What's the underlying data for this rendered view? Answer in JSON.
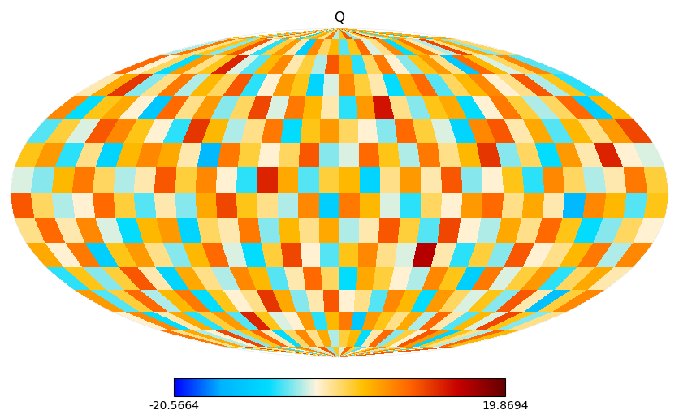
{
  "chart_data": {
    "type": "heatmap",
    "title": "Q",
    "tick_labels": false,
    "grid": false,
    "colorbar_range": [
      -20.5664,
      19.8694
    ],
    "colorbar_ticks": [
      -20.5664,
      19.8694
    ],
    "cells": [
      [
        3,
        -2,
        5,
        -7,
        1,
        8,
        -4,
        0,
        6,
        -3,
        -9,
        2,
        4,
        -1,
        7,
        -5,
        2,
        9,
        -6,
        -2,
        3,
        11,
        -4,
        1,
        -8,
        5,
        0,
        -3,
        6,
        -10,
        2,
        4
      ],
      [
        -5,
        7,
        -1,
        2,
        -6,
        4,
        9,
        -3,
        -8,
        1,
        5,
        -2,
        -11,
        6,
        0,
        3,
        -7,
        2,
        8,
        -4,
        -1,
        6,
        -9,
        3,
        7,
        -2,
        -5,
        10,
        -1,
        4,
        -6,
        0
      ],
      [
        8,
        -3,
        0,
        -9,
        5,
        -1,
        2,
        12,
        -4,
        -7,
        3,
        6,
        -2,
        1,
        -5,
        9,
        4,
        -8,
        0,
        7,
        -3,
        -6,
        2,
        5,
        -1,
        -12,
        8,
        3,
        -4,
        0,
        6,
        -7
      ],
      [
        -2,
        4,
        11,
        -6,
        -1,
        7,
        -5,
        3,
        0,
        9,
        -8,
        -3,
        5,
        2,
        -10,
        -4,
        6,
        1,
        -2,
        -9,
        4,
        8,
        -7,
        0,
        3,
        6,
        -3,
        -1,
        9,
        -5,
        2,
        -8
      ],
      [
        6,
        -9,
        2,
        4,
        -3,
        -12,
        8,
        -1,
        5,
        -6,
        0,
        10,
        -4,
        7,
        3,
        -2,
        -8,
        5,
        13,
        -1,
        -6,
        2,
        4,
        -9,
        -3,
        7,
        1,
        -5,
        0,
        8,
        -11,
        3
      ],
      [
        -7,
        1,
        -4,
        9,
        6,
        2,
        -3,
        -8,
        11,
        3,
        -5,
        -1,
        7,
        -9,
        2,
        5,
        0,
        -3,
        -6,
        8,
        1,
        -4,
        -10,
        6,
        9,
        -2,
        4,
        -7,
        3,
        -1,
        5,
        10
      ],
      [
        2,
        5,
        -8,
        -1,
        -10,
        3,
        6,
        4,
        -2,
        -14,
        7,
        1,
        -3,
        0,
        9,
        -6,
        -4,
        8,
        2,
        -5,
        7,
        -1,
        3,
        11,
        -6,
        0,
        -9,
        5,
        -2,
        12,
        -3,
        -4
      ],
      [
        -4,
        -6,
        3,
        7,
        0,
        -5,
        -2,
        9,
        1,
        6,
        -3,
        -8,
        12,
        4,
        -7,
        1,
        3,
        -10,
        -1,
        5,
        -2,
        9,
        -6,
        -3,
        2,
        -8,
        6,
        0,
        -5,
        -2,
        7,
        1
      ],
      [
        9,
        0,
        -5,
        -3,
        8,
        1,
        -7,
        -2,
        -6,
        4,
        10,
        2,
        -1,
        -5,
        6,
        -11,
        7,
        3,
        -4,
        -8,
        0,
        -3,
        5,
        8,
        -1,
        4,
        -2,
        -14,
        6,
        3,
        -7,
        2
      ],
      [
        -1,
        8,
        -2,
        6,
        -4,
        -9,
        3,
        5,
        -10,
        0,
        -2,
        7,
        -6,
        3,
        -1,
        4,
        -5,
        -2,
        9,
        1,
        -7,
        10,
        -3,
        -5,
        4,
        -1,
        8,
        2,
        -9,
        -6,
        0,
        -3
      ],
      [
        4,
        -3,
        7,
        -11,
        2,
        5,
        -1,
        -6,
        3,
        8,
        -4,
        -9,
        1,
        10,
        -3,
        -7,
        2,
        6,
        -1,
        -4,
        15,
        -2,
        -8,
        1,
        -6,
        9,
        -3,
        -1,
        3,
        7,
        -5,
        6
      ],
      [
        -8,
        2,
        -6,
        1,
        9,
        -2,
        -10,
        4,
        -1,
        -5,
        6,
        3,
        -7,
        -2,
        8,
        0,
        -9,
        4,
        1,
        -3,
        -5,
        6,
        2,
        -11,
        7,
        -4,
        1,
        5,
        -8,
        0,
        4,
        -2
      ],
      [
        5,
        -7,
        1,
        8,
        -5,
        3,
        7,
        -9,
        2,
        -3,
        -1,
        11,
        4,
        -6,
        -2,
        9,
        -3,
        -1,
        -7,
        6,
        3,
        -9,
        5,
        0,
        -4,
        2,
        -6,
        9,
        -2,
        -13,
        1,
        6
      ],
      [
        -3,
        6,
        -9,
        -2,
        4,
        -8,
        1,
        5,
        -7,
        12,
        2,
        -4,
        -3,
        5,
        -8,
        3,
        7,
        -12,
        5,
        2,
        -1,
        4,
        -5,
        8,
        -2,
        -7,
        3,
        -4,
        10,
        2,
        -6,
        -1
      ],
      [
        7,
        -1,
        4,
        -5,
        -3,
        10,
        -6,
        2,
        8,
        -2,
        -9,
        0,
        6,
        -1,
        4,
        -5,
        1,
        3,
        -9,
        -2,
        8,
        -6,
        1,
        -3,
        9,
        5,
        -10,
        2,
        -1,
        -5,
        8,
        3
      ],
      [
        -6,
        3,
        -2,
        10,
        1,
        -4,
        5,
        -8,
        -3,
        4,
        7,
        -5,
        -2,
        9,
        -6,
        2,
        -4,
        8,
        1,
        -7,
        -3,
        2,
        6,
        -1,
        -5,
        3,
        7,
        -2,
        -8,
        4,
        -3,
        9
      ]
    ]
  }
}
